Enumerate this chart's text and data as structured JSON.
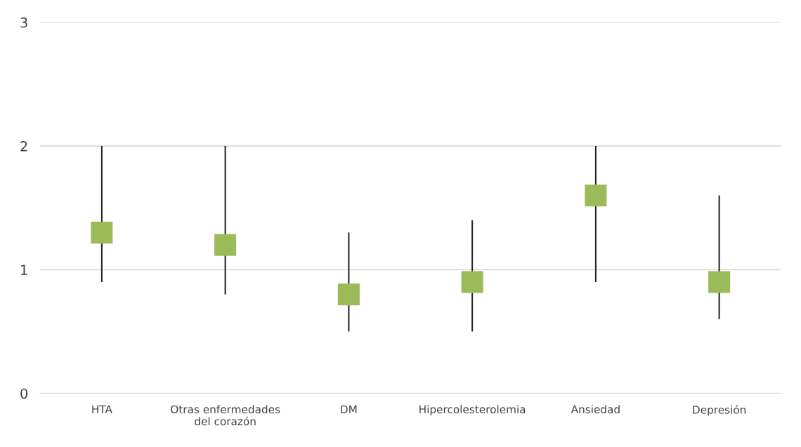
{
  "chart_data": {
    "type": "scatter",
    "categories": [
      "HTA",
      "Otras enfermedades\ndel corazón",
      "DM",
      "Hipercolesterolemia",
      "Ansiedad",
      "Depresión"
    ],
    "series": [
      {
        "color": "#9bbb59",
        "values": [
          1.3,
          1.2,
          0.8,
          0.9,
          1.6,
          0.9
        ],
        "errors": [
          [
            0.9,
            2.0
          ],
          [
            0.8,
            2.0
          ],
          [
            0.5,
            1.3
          ],
          [
            0.5,
            1.4
          ],
          [
            0.9,
            2.0
          ],
          [
            0.6,
            1.6
          ]
        ]
      }
    ],
    "ylim": [
      0,
      3
    ],
    "yticks": [
      0,
      1,
      2,
      3
    ],
    "grid": "y",
    "marker": "square",
    "legend": false
  }
}
